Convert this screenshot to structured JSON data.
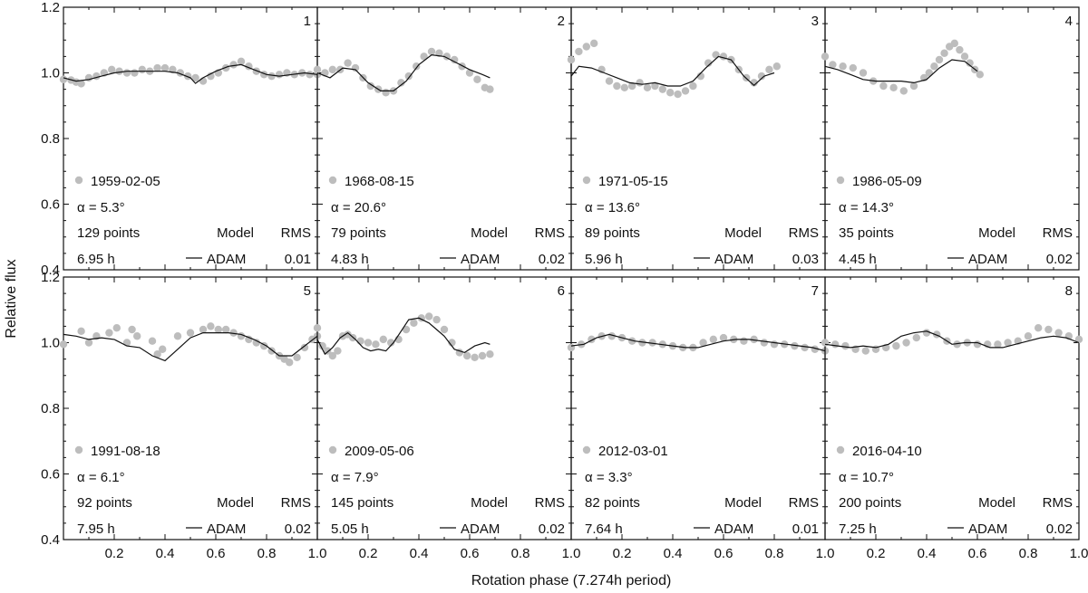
{
  "chart_data": {
    "type": "scatter",
    "figure": {
      "xlabel": "Rotation phase (7.274h period)",
      "ylabel": "Relative flux",
      "xlim": [
        0.0,
        1.0
      ],
      "ylim": [
        0.4,
        1.2
      ],
      "y_ticks": [
        "0.4",
        "0.6",
        "0.8",
        "1.0",
        "1.2"
      ],
      "x_ticks": [
        "0.2",
        "0.4",
        "0.6",
        "0.8",
        "1.0"
      ],
      "legend": {
        "model_heading": "Model",
        "model_name": "ADAM",
        "rms_heading": "RMS",
        "alpha_prefix": "α = "
      }
    },
    "panels": [
      {
        "id": "1",
        "date": "1959-02-05",
        "alpha": "5.3°",
        "points": "129 points",
        "duration": "6.95 h",
        "rms": "0.01",
        "observed": {
          "x": [
            0.0,
            0.03,
            0.05,
            0.07,
            0.1,
            0.13,
            0.16,
            0.19,
            0.22,
            0.25,
            0.28,
            0.31,
            0.34,
            0.37,
            0.4,
            0.43,
            0.46,
            0.49,
            0.52,
            0.55,
            0.58,
            0.61,
            0.64,
            0.67,
            0.7,
            0.73,
            0.76,
            0.79,
            0.82,
            0.85,
            0.88,
            0.91,
            0.94,
            0.97,
            1.0
          ],
          "y": [
            0.98,
            0.978,
            0.972,
            0.967,
            0.985,
            0.99,
            1.0,
            1.01,
            1.005,
            1.0,
            1.0,
            1.01,
            1.005,
            1.015,
            1.015,
            1.01,
            1.0,
            0.99,
            0.985,
            0.975,
            0.99,
            1.0,
            1.015,
            1.025,
            1.035,
            1.02,
            1.005,
            0.995,
            0.99,
            0.995,
            1.0,
            0.995,
            1.0,
            0.995,
            0.995
          ]
        },
        "model": {
          "x": [
            0.0,
            0.05,
            0.1,
            0.15,
            0.2,
            0.25,
            0.3,
            0.35,
            0.4,
            0.45,
            0.5,
            0.52,
            0.55,
            0.6,
            0.65,
            0.7,
            0.75,
            0.8,
            0.85,
            0.9,
            0.95,
            1.0
          ],
          "y": [
            0.985,
            0.975,
            0.98,
            0.99,
            1.0,
            1.005,
            1.005,
            1.005,
            1.005,
            1.0,
            0.985,
            0.968,
            0.985,
            1.005,
            1.02,
            1.025,
            1.01,
            0.995,
            0.99,
            0.995,
            1.0,
            0.995
          ]
        }
      },
      {
        "id": "2",
        "date": "1968-08-15",
        "alpha": "20.6°",
        "points": "79 points",
        "duration": "4.83 h",
        "rms": "0.02",
        "observed": {
          "x": [
            0.0,
            0.03,
            0.06,
            0.09,
            0.12,
            0.15,
            0.18,
            0.21,
            0.24,
            0.27,
            0.3,
            0.33,
            0.36,
            0.39,
            0.42,
            0.45,
            0.48,
            0.51,
            0.54,
            0.57,
            0.6,
            0.63,
            0.66,
            0.68
          ],
          "y": [
            1.01,
            1.0,
            1.01,
            1.01,
            1.03,
            1.015,
            0.985,
            0.96,
            0.95,
            0.94,
            0.945,
            0.97,
            0.99,
            1.02,
            1.05,
            1.065,
            1.06,
            1.05,
            1.04,
            1.02,
            1.0,
            0.98,
            0.955,
            0.95
          ]
        },
        "model": {
          "x": [
            0.0,
            0.05,
            0.1,
            0.15,
            0.2,
            0.25,
            0.3,
            0.35,
            0.4,
            0.45,
            0.5,
            0.55,
            0.6,
            0.65,
            0.68
          ],
          "y": [
            1.0,
            0.985,
            1.015,
            1.01,
            0.97,
            0.945,
            0.945,
            0.975,
            1.025,
            1.055,
            1.05,
            1.03,
            1.01,
            0.995,
            0.985
          ]
        }
      },
      {
        "id": "3",
        "date": "1971-05-15",
        "alpha": "13.6°",
        "points": "89 points",
        "duration": "5.96 h",
        "rms": "0.03",
        "observed": {
          "x": [
            0.0,
            0.03,
            0.06,
            0.09,
            0.12,
            0.15,
            0.18,
            0.21,
            0.24,
            0.27,
            0.3,
            0.33,
            0.36,
            0.39,
            0.42,
            0.45,
            0.48,
            0.51,
            0.54,
            0.57,
            0.6,
            0.63,
            0.66,
            0.69,
            0.72,
            0.75,
            0.78,
            0.81
          ],
          "y": [
            1.04,
            1.065,
            1.08,
            1.09,
            1.01,
            0.975,
            0.96,
            0.955,
            0.96,
            0.97,
            0.955,
            0.96,
            0.95,
            0.94,
            0.935,
            0.945,
            0.96,
            0.99,
            1.03,
            1.055,
            1.05,
            1.04,
            1.01,
            0.985,
            0.97,
            0.99,
            1.01,
            1.02
          ]
        },
        "model": {
          "x": [
            0.0,
            0.03,
            0.08,
            0.13,
            0.18,
            0.23,
            0.28,
            0.33,
            0.38,
            0.43,
            0.48,
            0.53,
            0.58,
            0.63,
            0.68,
            0.72,
            0.76,
            0.8
          ],
          "y": [
            0.99,
            1.02,
            1.015,
            1.0,
            0.985,
            0.97,
            0.965,
            0.97,
            0.96,
            0.96,
            0.975,
            1.015,
            1.05,
            1.04,
            0.99,
            0.962,
            0.99,
            1.0
          ]
        }
      },
      {
        "id": "4",
        "date": "1986-05-09",
        "alpha": "14.3°",
        "points": "35 points",
        "duration": "4.45 h",
        "rms": "0.02",
        "observed": {
          "x": [
            0.0,
            0.03,
            0.07,
            0.11,
            0.15,
            0.19,
            0.23,
            0.27,
            0.31,
            0.35,
            0.39,
            0.41,
            0.43,
            0.45,
            0.47,
            0.49,
            0.51,
            0.53,
            0.55,
            0.57,
            0.59,
            0.61
          ],
          "y": [
            1.05,
            1.025,
            1.02,
            1.015,
            1.0,
            0.975,
            0.96,
            0.955,
            0.945,
            0.96,
            0.985,
            1.0,
            1.02,
            1.04,
            1.06,
            1.08,
            1.09,
            1.07,
            1.05,
            1.03,
            1.01,
            0.995
          ]
        },
        "model": {
          "x": [
            0.0,
            0.05,
            0.1,
            0.15,
            0.2,
            0.25,
            0.3,
            0.35,
            0.4,
            0.45,
            0.5,
            0.55,
            0.6
          ],
          "y": [
            1.02,
            1.01,
            0.995,
            0.98,
            0.975,
            0.975,
            0.975,
            0.97,
            0.98,
            1.015,
            1.04,
            1.035,
            1.005
          ]
        }
      },
      {
        "id": "5",
        "date": "1991-08-18",
        "alpha": "6.1°",
        "points": "92 points",
        "duration": "7.95 h",
        "rms": "0.02",
        "observed": {
          "x": [
            0.0,
            0.07,
            0.1,
            0.13,
            0.18,
            0.21,
            0.25,
            0.27,
            0.29,
            0.35,
            0.37,
            0.39,
            0.45,
            0.5,
            0.55,
            0.58,
            0.61,
            0.64,
            0.67,
            0.7,
            0.73,
            0.76,
            0.79,
            0.82,
            0.85,
            0.87,
            0.89,
            0.92,
            0.95,
            0.98,
            1.0
          ],
          "y": [
            0.995,
            1.035,
            1.0,
            1.02,
            1.03,
            1.045,
            1.0,
            1.04,
            1.02,
            1.005,
            0.965,
            0.98,
            1.02,
            1.03,
            1.04,
            1.05,
            1.04,
            1.04,
            1.03,
            1.02,
            1.01,
            1.0,
            0.99,
            0.975,
            0.96,
            0.95,
            0.94,
            0.955,
            0.985,
            1.01,
            1.02
          ]
        },
        "model": {
          "x": [
            0.0,
            0.05,
            0.1,
            0.15,
            0.2,
            0.25,
            0.3,
            0.35,
            0.4,
            0.45,
            0.5,
            0.55,
            0.6,
            0.65,
            0.7,
            0.75,
            0.8,
            0.85,
            0.9,
            0.95,
            1.0
          ],
          "y": [
            1.025,
            1.02,
            1.01,
            1.015,
            1.01,
            0.99,
            0.985,
            0.96,
            0.945,
            0.98,
            1.015,
            1.03,
            1.03,
            1.03,
            1.025,
            1.01,
            0.99,
            0.96,
            0.96,
            0.99,
            1.02
          ]
        }
      },
      {
        "id": "6",
        "date": "2009-05-06",
        "alpha": "7.9°",
        "points": "145 points",
        "duration": "5.05 h",
        "rms": "0.02",
        "observed": {
          "x": [
            0.0,
            0.02,
            0.04,
            0.06,
            0.08,
            0.1,
            0.12,
            0.14,
            0.17,
            0.2,
            0.23,
            0.26,
            0.29,
            0.32,
            0.35,
            0.38,
            0.41,
            0.44,
            0.47,
            0.5,
            0.53,
            0.56,
            0.59,
            0.62,
            0.65,
            0.68
          ],
          "y": [
            1.045,
            0.99,
            0.975,
            0.96,
            0.975,
            1.02,
            1.025,
            1.015,
            1.005,
            1.0,
            0.995,
            1.01,
            1.0,
            1.01,
            1.04,
            1.06,
            1.075,
            1.08,
            1.07,
            1.04,
            1.0,
            0.97,
            0.96,
            0.955,
            0.96,
            0.965
          ]
        },
        "model": {
          "x": [
            0.0,
            0.03,
            0.06,
            0.09,
            0.12,
            0.15,
            0.18,
            0.21,
            0.24,
            0.27,
            0.3,
            0.33,
            0.36,
            0.4,
            0.44,
            0.47,
            0.5,
            0.54,
            0.58,
            0.62,
            0.66,
            0.68
          ],
          "y": [
            1.01,
            0.965,
            0.985,
            1.015,
            1.03,
            1.01,
            0.985,
            0.975,
            0.98,
            0.975,
            1.0,
            1.035,
            1.07,
            1.075,
            1.06,
            1.04,
            1.02,
            0.98,
            0.97,
            0.99,
            1.0,
            0.995
          ]
        }
      },
      {
        "id": "7",
        "date": "2012-03-01",
        "alpha": "3.3°",
        "points": "82 points",
        "duration": "7.64 h",
        "rms": "0.01",
        "observed": {
          "x": [
            0.0,
            0.04,
            0.08,
            0.12,
            0.16,
            0.2,
            0.24,
            0.28,
            0.32,
            0.36,
            0.4,
            0.44,
            0.48,
            0.52,
            0.56,
            0.6,
            0.64,
            0.68,
            0.72,
            0.76,
            0.8,
            0.84,
            0.88,
            0.92,
            0.96,
            1.0
          ],
          "y": [
            0.985,
            0.995,
            1.01,
            1.02,
            1.02,
            1.015,
            1.005,
            1.0,
            1.0,
            0.995,
            0.99,
            0.985,
            0.985,
            1.0,
            1.01,
            1.015,
            1.01,
            1.005,
            1.01,
            1.0,
            0.995,
            0.995,
            0.99,
            0.985,
            0.98,
            0.975
          ]
        },
        "model": {
          "x": [
            0.0,
            0.05,
            0.1,
            0.15,
            0.2,
            0.25,
            0.3,
            0.35,
            0.4,
            0.45,
            0.5,
            0.55,
            0.6,
            0.65,
            0.7,
            0.75,
            0.8,
            0.85,
            0.9,
            0.95,
            1.0
          ],
          "y": [
            0.99,
            0.995,
            1.015,
            1.025,
            1.015,
            1.005,
            1.0,
            0.995,
            0.99,
            0.985,
            0.985,
            0.995,
            1.005,
            1.01,
            1.01,
            1.005,
            1.0,
            0.995,
            0.99,
            0.985,
            0.975
          ]
        }
      },
      {
        "id": "8",
        "date": "2016-04-10",
        "alpha": "10.7°",
        "points": "200 points",
        "duration": "7.25 h",
        "rms": "0.02",
        "observed": {
          "x": [
            0.0,
            0.04,
            0.08,
            0.12,
            0.16,
            0.2,
            0.24,
            0.28,
            0.32,
            0.36,
            0.4,
            0.44,
            0.48,
            0.52,
            0.56,
            0.6,
            0.64,
            0.68,
            0.72,
            0.76,
            0.8,
            0.84,
            0.88,
            0.92,
            0.96,
            1.0
          ],
          "y": [
            1.0,
            0.995,
            0.99,
            0.98,
            0.975,
            0.98,
            0.985,
            0.99,
            1.0,
            1.015,
            1.03,
            1.025,
            1.005,
            0.995,
            1.0,
            0.995,
            0.995,
            0.995,
            1.0,
            1.005,
            1.02,
            1.045,
            1.04,
            1.03,
            1.02,
            1.01
          ]
        },
        "model": {
          "x": [
            0.0,
            0.05,
            0.1,
            0.15,
            0.2,
            0.25,
            0.3,
            0.35,
            0.4,
            0.45,
            0.5,
            0.55,
            0.6,
            0.65,
            0.7,
            0.75,
            0.8,
            0.85,
            0.9,
            0.95,
            1.0
          ],
          "y": [
            0.995,
            0.99,
            0.985,
            0.99,
            0.985,
            0.995,
            1.02,
            1.03,
            1.035,
            1.02,
            0.995,
            1.0,
            1.0,
            0.985,
            0.985,
            0.995,
            1.005,
            1.015,
            1.02,
            1.015,
            1.0
          ]
        }
      }
    ]
  }
}
